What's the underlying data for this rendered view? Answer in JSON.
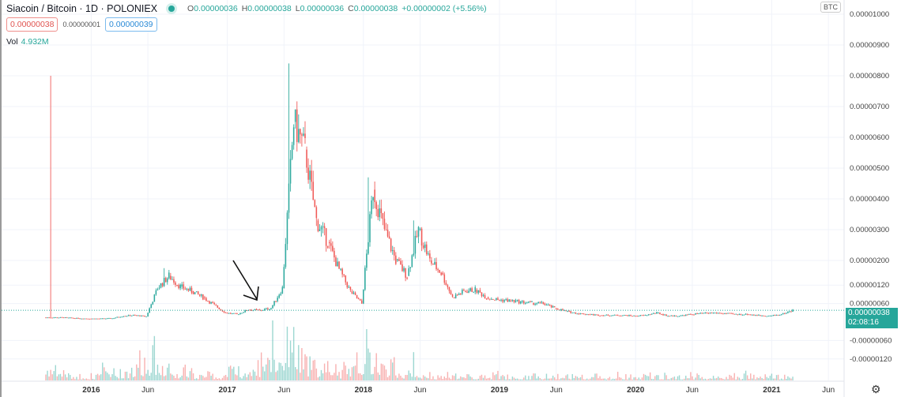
{
  "header": {
    "symbol": "Siacoin / Bitcoin · 1D · POLONIEX",
    "status_color": "#26a69a",
    "ohlc": {
      "o_label": "O",
      "o": "0.00000036",
      "h_label": "H",
      "h": "0.00000038",
      "l_label": "L",
      "l": "0.00000036",
      "c_label": "C",
      "c": "0.00000038",
      "change": "+0.00000002 (+5.56%)"
    },
    "bid": "0.00000038",
    "spread": "0.00000001",
    "ask": "0.00000039",
    "vol_label": "Vol",
    "vol_value": "4.932M"
  },
  "price_axis": {
    "currency": "BTC",
    "current_price": "0.00000038",
    "countdown": "02:08:16",
    "settings_icon": "gear-icon"
  },
  "colors": {
    "up": "#26a69a",
    "down": "#ef5350",
    "price_line": "#26a69a"
  },
  "chart_data": {
    "type": "candlestick",
    "title": "Siacoin / Bitcoin · 1D · POLONIEX",
    "unit": "BTC (1e-8)",
    "ylim": [
      -150,
      1050
    ],
    "yticks": [
      {
        "value": 1000,
        "label": "0.00001000"
      },
      {
        "value": 900,
        "label": "0.00000900"
      },
      {
        "value": 800,
        "label": "0.00000800"
      },
      {
        "value": 700,
        "label": "0.00000700"
      },
      {
        "value": 600,
        "label": "0.00000600"
      },
      {
        "value": 500,
        "label": "0.00000500"
      },
      {
        "value": 400,
        "label": "0.00000400"
      },
      {
        "value": 300,
        "label": "0.00000300"
      },
      {
        "value": 200,
        "label": "0.00000200"
      },
      {
        "value": 120,
        "label": "0.00000120"
      },
      {
        "value": 60,
        "label": "0.00000060"
      },
      {
        "value": -60,
        "label": "-0.00000060"
      },
      {
        "value": -120,
        "label": "-0.00000120"
      }
    ],
    "xticks": [
      {
        "date": "2016-01",
        "label": "2016"
      },
      {
        "date": "2016-06",
        "label": "Jun"
      },
      {
        "date": "2017-01",
        "label": "2017"
      },
      {
        "date": "2017-06",
        "label": "Jun"
      },
      {
        "date": "2018-01",
        "label": "2018"
      },
      {
        "date": "2018-06",
        "label": "Jun"
      },
      {
        "date": "2019-01",
        "label": "2019"
      },
      {
        "date": "2019-06",
        "label": "Jun"
      },
      {
        "date": "2020-01",
        "label": "2020"
      },
      {
        "date": "2020-06",
        "label": "Jun"
      },
      {
        "date": "2021-01",
        "label": "2021"
      },
      {
        "date": "2021-06",
        "label": "Jun"
      }
    ],
    "start_month": "2015-09",
    "monthly_close": [
      15,
      14,
      12,
      11,
      11,
      12,
      20,
      22,
      18,
      110,
      150,
      115,
      100,
      80,
      55,
      30,
      25,
      40,
      38,
      45,
      110,
      650,
      560,
      330,
      260,
      170,
      100,
      60,
      430,
      300,
      200,
      150,
      300,
      200,
      160,
      80,
      100,
      105,
      80,
      72,
      70,
      65,
      62,
      60,
      45,
      35,
      28,
      25,
      22,
      22,
      22,
      20,
      22,
      30,
      20,
      20,
      25,
      28,
      30,
      28,
      25,
      25,
      22,
      20,
      25,
      38
    ],
    "monthly_volume": [
      3,
      2,
      1,
      1,
      1,
      3,
      2,
      2,
      4,
      5,
      4,
      2,
      3,
      1,
      1,
      1,
      2,
      2,
      3,
      5,
      8,
      10,
      6,
      4,
      3,
      3,
      2,
      5,
      6,
      4,
      3,
      2,
      3,
      2,
      1,
      1,
      1,
      1,
      1,
      1,
      1,
      1,
      1,
      1,
      1,
      1,
      1,
      1,
      1,
      1,
      1,
      1,
      1,
      1,
      1,
      1,
      1,
      1,
      1,
      1,
      1,
      1,
      1,
      1,
      1,
      1
    ],
    "peaks": [
      {
        "date": "2015-09",
        "high": 800
      },
      {
        "date": "2017-06",
        "high": 840
      },
      {
        "date": "2018-01",
        "high": 470
      },
      {
        "date": "2018-05",
        "high": 330
      },
      {
        "date": "2016-07",
        "high": 175
      }
    ],
    "current": 38
  }
}
